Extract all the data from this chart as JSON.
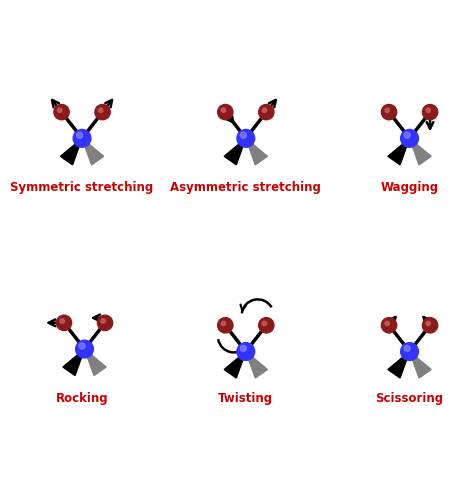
{
  "bg_color": "#ffffff",
  "blue_color": "#3333ff",
  "blue_highlight": "#8888ff",
  "red_color": "#8b1a1a",
  "red_highlight": "#cc6666",
  "label_color": "#cc0000",
  "label_fontsize": 8.5,
  "label_fontweight": "bold",
  "panels": [
    {
      "label": "Symmetric stretching"
    },
    {
      "label": "Asymmetric stretching"
    },
    {
      "label": "Wagging"
    },
    {
      "label": "Rocking"
    },
    {
      "label": "Twisting"
    },
    {
      "label": "Scissoring"
    }
  ]
}
